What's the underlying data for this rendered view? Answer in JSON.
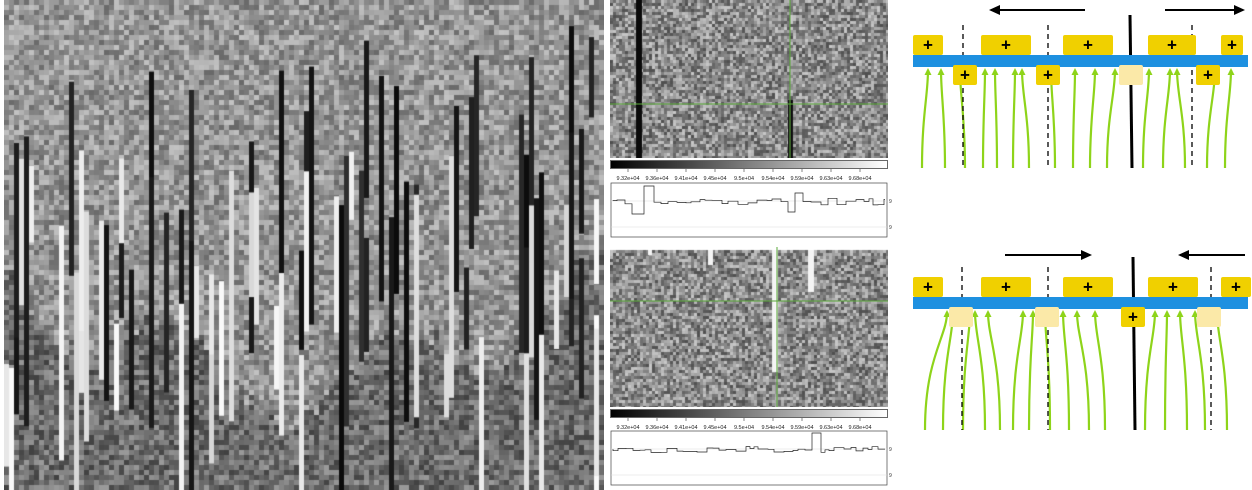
{
  "figure": {
    "kymograph": {
      "description_visible": false
    },
    "image_panels": [
      {
        "id": "top",
        "colorbar_ticks": [
          "9.32e+04",
          "9.36e+04",
          "9.41e+04",
          "9.45e+04",
          "9.5e+04",
          "9.54e+04",
          "9.59e+04",
          "9.63e+04",
          "9.68e+04"
        ],
        "profile_ytick_labels": [
          "95000",
          "90000"
        ]
      },
      {
        "id": "bottom",
        "colorbar_ticks": [
          "9.32e+04",
          "9.36e+04",
          "9.41e+04",
          "9.45e+04",
          "9.5e+04",
          "9.54e+04",
          "9.59e+04",
          "9.63e+04",
          "9.68e+04"
        ],
        "profile_ytick_labels": [
          "95000",
          "90000"
        ]
      }
    ],
    "schematics": [
      {
        "id": "top",
        "plus_symbol": "+",
        "arrow_directions": [
          "left",
          "right"
        ]
      },
      {
        "id": "bottom",
        "plus_symbol": "+",
        "arrow_directions": [
          "right",
          "left"
        ]
      }
    ],
    "colors": {
      "membrane_blue": "#1e90e0",
      "charge_yellow": "#f0d000",
      "charge_yellow_faded": "#fbe9a8",
      "field_green": "#8ed41a",
      "arrow_black": "#000000",
      "reticle_green": "#5aa83a"
    }
  }
}
